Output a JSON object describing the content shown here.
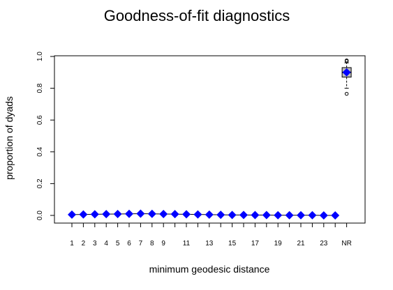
{
  "chart_data": {
    "type": "scatter",
    "title": "Goodness-of-fit diagnostics",
    "xlabel": "minimum geodesic distance",
    "ylabel": "proportion of dyads",
    "categories": [
      "1",
      "2",
      "3",
      "4",
      "5",
      "6",
      "7",
      "8",
      "9",
      "10",
      "11",
      "12",
      "13",
      "14",
      "15",
      "16",
      "17",
      "18",
      "19",
      "20",
      "21",
      "22",
      "23",
      "24",
      "NR"
    ],
    "x_tick_labels": [
      "1",
      "2",
      "3",
      "4",
      "5",
      "6",
      "7",
      "8",
      "9",
      "11",
      "13",
      "15",
      "17",
      "19",
      "21",
      "23",
      "NR"
    ],
    "y_ticks": [
      "0.0",
      "0.2",
      "0.4",
      "0.6",
      "0.8",
      "1.0"
    ],
    "ylim": [
      0,
      1
    ],
    "grid": false,
    "series": [
      {
        "values": [
          0.005,
          0.006,
          0.007,
          0.008,
          0.009,
          0.01,
          0.011,
          0.01,
          0.009,
          0.008,
          0.007,
          0.006,
          0.005,
          0.004,
          0.003,
          0.003,
          0.002,
          0.002,
          0.001,
          0.001,
          0.001,
          0.001,
          0.0,
          0.0,
          0.9
        ]
      }
    ],
    "nr_box": {
      "q1": 0.87,
      "median": 0.9,
      "q3": 0.93,
      "whisker_low": 0.8,
      "whisker_high": 0.96,
      "outliers": [
        0.765,
        0.97,
        0.975
      ]
    },
    "colors": {
      "observed": "#0000ff",
      "box_fill": "#bebebe",
      "line": "#000000"
    }
  }
}
